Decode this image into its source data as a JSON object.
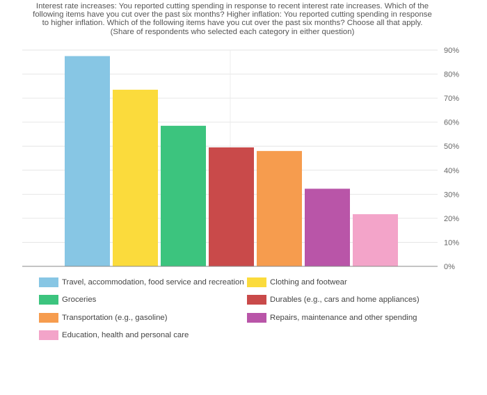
{
  "title_lines": [
    "Interest rate increases: You reported cutting spending in response to recent interest rate increases. Which of the",
    "following items have you cut over the past six months? Higher inflation: You reported cutting spending in response",
    "to higher inflation. Which of the following items have you cut over the past six months? Choose all that apply.",
    "(Share of respondents who selected each category in either question)"
  ],
  "chart_data": {
    "type": "bar",
    "title": "Interest rate increases: You reported cutting spending in response to recent interest rate increases. Which of the following items have you cut over the past six months? Higher inflation: You reported cutting spending in response to higher inflation. Which of the following items have you cut over the past six months? Choose all that apply. (Share of respondents who selected each category in either question)",
    "xlabel": "",
    "ylabel": "",
    "ylim": [
      0,
      90
    ],
    "yticks": [
      "0%",
      "10%",
      "20%",
      "30%",
      "40%",
      "50%",
      "60%",
      "70%",
      "80%",
      "90%"
    ],
    "y_axis_side": "right",
    "grid": true,
    "legend_position": "bottom",
    "series": [
      {
        "name": "Travel, accommodation, food service and recreation",
        "value": 87.5,
        "color": "#87c6e4"
      },
      {
        "name": "Clothing and footwear",
        "value": 73.5,
        "color": "#fbdb3c"
      },
      {
        "name": "Groceries",
        "value": 58.5,
        "color": "#3cc47e"
      },
      {
        "name": "Durables (e.g., cars and home appliances)",
        "value": 49.5,
        "color": "#c94a4a"
      },
      {
        "name": "Transportation (e.g., gasoline)",
        "value": 48,
        "color": "#f69c4e"
      },
      {
        "name": "Repairs, maintenance and other spending",
        "value": 32.3,
        "color": "#b955a8"
      },
      {
        "name": "Education, health and personal care",
        "value": 21.7,
        "color": "#f3a4c9"
      }
    ]
  }
}
